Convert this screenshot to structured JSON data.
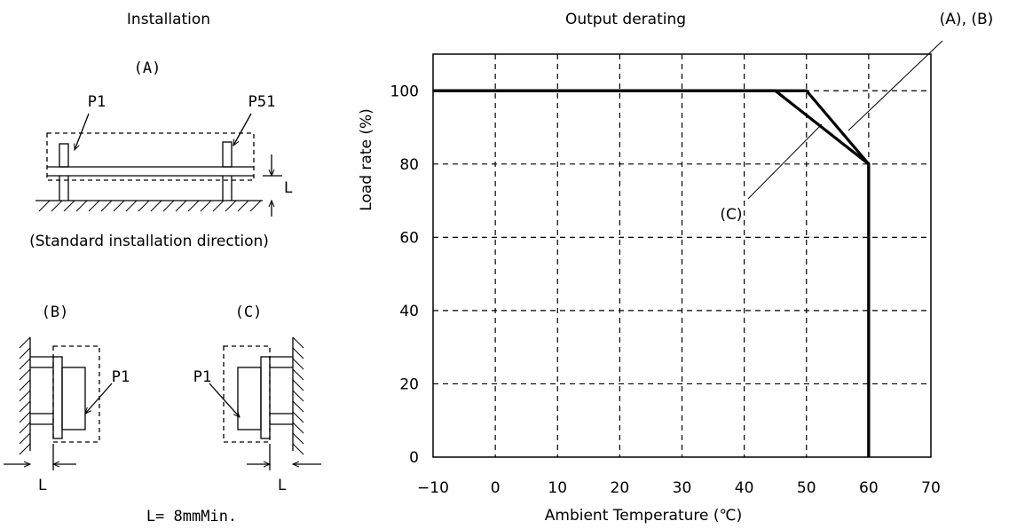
{
  "installation": {
    "title": "Installation",
    "view_a_label": "(A)",
    "view_b_label": "(B)",
    "view_c_label": "(C)",
    "caption_a": "(Standard installation direction)",
    "p1_label": "P1",
    "p51_label": "P51",
    "l_label": "L",
    "spec": "L= 8mmMin."
  },
  "chart_data": {
    "type": "line",
    "title": "Output derating",
    "xlabel": "Ambient Temperature  (℃)",
    "ylabel": "Load rate  (%)",
    "xlim": [
      -10,
      70
    ],
    "ylim": [
      0,
      110
    ],
    "xticks": [
      -10,
      0,
      10,
      20,
      30,
      40,
      50,
      60,
      70
    ],
    "yticks": [
      0,
      20,
      40,
      60,
      80,
      100
    ],
    "xtick_labels": [
      "−10",
      "0",
      "10",
      "20",
      "30",
      "40",
      "50",
      "60",
      "70"
    ],
    "ytick_labels": [
      "0",
      "20",
      "40",
      "60",
      "80",
      "100"
    ],
    "grid": true,
    "series": [
      {
        "name": "(A), (B)",
        "x": [
          -10,
          50,
          60,
          60
        ],
        "y": [
          100,
          100,
          80,
          0
        ]
      },
      {
        "name": "(C)",
        "x": [
          -10,
          45,
          60,
          60
        ],
        "y": [
          100,
          100,
          80,
          0
        ]
      }
    ]
  }
}
